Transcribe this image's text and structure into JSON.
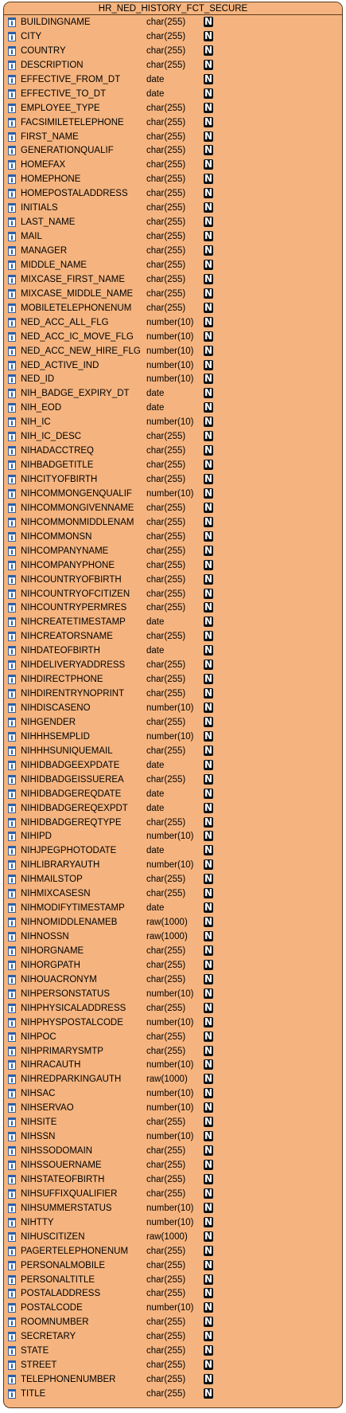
{
  "table": {
    "name": "HR_NED_HISTORY_FCT_SECURE",
    "nullable_marker": "N",
    "colors": {
      "fill": "#f5b47f",
      "border": "#5b3a1e",
      "field_icon": "#2d5fa8"
    },
    "columns": [
      {
        "name": "BUILDINGNAME",
        "type": "char(255)"
      },
      {
        "name": "CITY",
        "type": "char(255)"
      },
      {
        "name": "COUNTRY",
        "type": "char(255)"
      },
      {
        "name": "DESCRIPTION",
        "type": "char(255)"
      },
      {
        "name": "EFFECTIVE_FROM_DT",
        "type": "date"
      },
      {
        "name": "EFFECTIVE_TO_DT",
        "type": "date"
      },
      {
        "name": "EMPLOYEE_TYPE",
        "type": "char(255)"
      },
      {
        "name": "FACSIMILETELEPHONE",
        "type": "char(255)"
      },
      {
        "name": "FIRST_NAME",
        "type": "char(255)"
      },
      {
        "name": "GENERATIONQUALIF",
        "type": "char(255)"
      },
      {
        "name": "HOMEFAX",
        "type": "char(255)"
      },
      {
        "name": "HOMEPHONE",
        "type": "char(255)"
      },
      {
        "name": "HOMEPOSTALADDRESS",
        "type": "char(255)"
      },
      {
        "name": "INITIALS",
        "type": "char(255)"
      },
      {
        "name": "LAST_NAME",
        "type": "char(255)"
      },
      {
        "name": "MAIL",
        "type": "char(255)"
      },
      {
        "name": "MANAGER",
        "type": "char(255)"
      },
      {
        "name": "MIDDLE_NAME",
        "type": "char(255)"
      },
      {
        "name": "MIXCASE_FIRST_NAME",
        "type": "char(255)"
      },
      {
        "name": "MIXCASE_MIDDLE_NAME",
        "type": "char(255)"
      },
      {
        "name": "MOBILETELEPHONENUM",
        "type": "char(255)"
      },
      {
        "name": "NED_ACC_ALL_FLG",
        "type": "number(10)"
      },
      {
        "name": "NED_ACC_IC_MOVE_FLG",
        "type": "number(10)"
      },
      {
        "name": "NED_ACC_NEW_HIRE_FLG",
        "type": "number(10)"
      },
      {
        "name": "NED_ACTIVE_IND",
        "type": "number(10)"
      },
      {
        "name": "NED_ID",
        "type": "number(10)"
      },
      {
        "name": "NIH_BADGE_EXPIRY_DT",
        "type": "date"
      },
      {
        "name": "NIH_EOD",
        "type": "date"
      },
      {
        "name": "NIH_IC",
        "type": "number(10)"
      },
      {
        "name": "NIH_IC_DESC",
        "type": "char(255)"
      },
      {
        "name": "NIHADACCTREQ",
        "type": "char(255)"
      },
      {
        "name": "NIHBADGETITLE",
        "type": "char(255)"
      },
      {
        "name": "NIHCITYOFBIRTH",
        "type": "char(255)"
      },
      {
        "name": "NIHCOMMONGENQUALIF",
        "type": "number(10)"
      },
      {
        "name": "NIHCOMMONGIVENNAME",
        "type": "char(255)"
      },
      {
        "name": "NIHCOMMONMIDDLENAM",
        "type": "char(255)"
      },
      {
        "name": "NIHCOMMONSN",
        "type": "char(255)"
      },
      {
        "name": "NIHCOMPANYNAME",
        "type": "char(255)"
      },
      {
        "name": "NIHCOMPANYPHONE",
        "type": "char(255)"
      },
      {
        "name": "NIHCOUNTRYOFBIRTH",
        "type": "char(255)"
      },
      {
        "name": "NIHCOUNTRYOFCITIZEN",
        "type": "char(255)"
      },
      {
        "name": "NIHCOUNTRYPERMRES",
        "type": "char(255)"
      },
      {
        "name": "NIHCREATETIMESTAMP",
        "type": "date"
      },
      {
        "name": "NIHCREATORSNAME",
        "type": "char(255)"
      },
      {
        "name": "NIHDATEOFBIRTH",
        "type": "date"
      },
      {
        "name": "NIHDELIVERYADDRESS",
        "type": "char(255)"
      },
      {
        "name": "NIHDIRECTPHONE",
        "type": "char(255)"
      },
      {
        "name": "NIHDIRENTRYNOPRINT",
        "type": "char(255)"
      },
      {
        "name": "NIHDISCASENO",
        "type": "number(10)"
      },
      {
        "name": "NIHGENDER",
        "type": "char(255)"
      },
      {
        "name": "NIHHHSEMPLID",
        "type": "number(10)"
      },
      {
        "name": "NIHHHSUNIQUEMAIL",
        "type": "char(255)"
      },
      {
        "name": "NIHIDBADGEEXPDATE",
        "type": "date"
      },
      {
        "name": "NIHIDBADGEISSUEREA",
        "type": "char(255)"
      },
      {
        "name": "NIHIDBADGEREQDATE",
        "type": "date"
      },
      {
        "name": "NIHIDBADGEREQEXPDT",
        "type": "date"
      },
      {
        "name": "NIHIDBADGEREQTYPE",
        "type": "char(255)"
      },
      {
        "name": "NIHIPD",
        "type": "number(10)"
      },
      {
        "name": "NIHJPEGPHOTODATE",
        "type": "date"
      },
      {
        "name": "NIHLIBRARYAUTH",
        "type": "number(10)"
      },
      {
        "name": "NIHMAILSTOP",
        "type": "char(255)"
      },
      {
        "name": "NIHMIXCASESN",
        "type": "char(255)"
      },
      {
        "name": "NIHMODIFYTIMESTAMP",
        "type": "date"
      },
      {
        "name": "NIHNOMIDDLENAMEB",
        "type": "raw(1000)"
      },
      {
        "name": "NIHNOSSN",
        "type": "raw(1000)"
      },
      {
        "name": "NIHORGNAME",
        "type": "char(255)"
      },
      {
        "name": "NIHORGPATH",
        "type": "char(255)"
      },
      {
        "name": "NIHOUACRONYM",
        "type": "char(255)"
      },
      {
        "name": "NIHPERSONSTATUS",
        "type": "number(10)"
      },
      {
        "name": "NIHPHYSICALADDRESS",
        "type": "char(255)"
      },
      {
        "name": "NIHPHYSPOSTALCODE",
        "type": "number(10)"
      },
      {
        "name": "NIHPOC",
        "type": "char(255)"
      },
      {
        "name": "NIHPRIMARYSMTP",
        "type": "char(255)"
      },
      {
        "name": "NIHRACAUTH",
        "type": "number(10)"
      },
      {
        "name": "NIHREDPARKINGAUTH",
        "type": "raw(1000)"
      },
      {
        "name": "NIHSAC",
        "type": "number(10)"
      },
      {
        "name": "NIHSERVAO",
        "type": "number(10)"
      },
      {
        "name": "NIHSITE",
        "type": "char(255)"
      },
      {
        "name": "NIHSSN",
        "type": "number(10)"
      },
      {
        "name": "NIHSSODOMAIN",
        "type": "char(255)"
      },
      {
        "name": "NIHSSOUERNAME",
        "type": "char(255)"
      },
      {
        "name": "NIHSTATEOFBIRTH",
        "type": "char(255)"
      },
      {
        "name": "NIHSUFFIXQUALIFIER",
        "type": "char(255)"
      },
      {
        "name": "NIHSUMMERSTATUS",
        "type": "number(10)"
      },
      {
        "name": "NIHTTY",
        "type": "number(10)"
      },
      {
        "name": "NIHUSCITIZEN",
        "type": "raw(1000)"
      },
      {
        "name": "PAGERTELEPHONENUM",
        "type": "char(255)"
      },
      {
        "name": "PERSONALMOBILE",
        "type": "char(255)"
      },
      {
        "name": "PERSONALTITLE",
        "type": "char(255)"
      },
      {
        "name": "POSTALADDRESS",
        "type": "char(255)"
      },
      {
        "name": "POSTALCODE",
        "type": "number(10)"
      },
      {
        "name": "ROOMNUMBER",
        "type": "char(255)"
      },
      {
        "name": "SECRETARY",
        "type": "char(255)"
      },
      {
        "name": "STATE",
        "type": "char(255)"
      },
      {
        "name": "STREET",
        "type": "char(255)"
      },
      {
        "name": "TELEPHONENUMBER",
        "type": "char(255)"
      },
      {
        "name": "TITLE",
        "type": "char(255)"
      }
    ]
  }
}
